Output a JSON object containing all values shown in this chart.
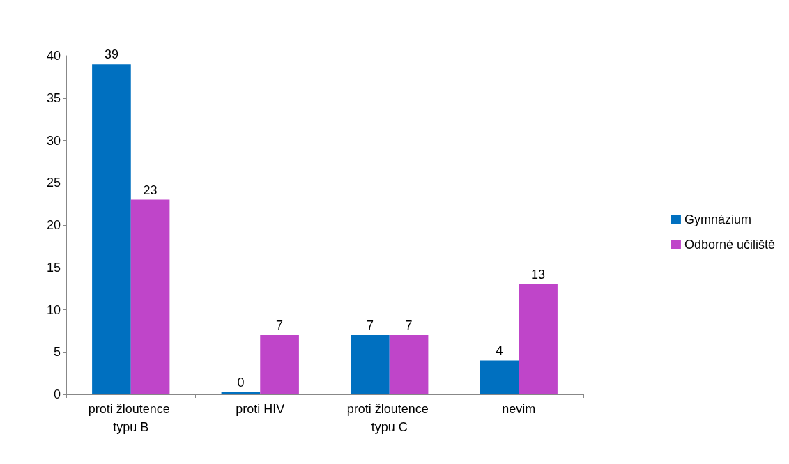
{
  "chart_data": {
    "type": "bar",
    "categories": [
      "proti žloutence typu B",
      "proti HIV",
      "proti žloutence typu C",
      "nevim"
    ],
    "series": [
      {
        "name": "Gymnázium",
        "color": "#0070c0",
        "values": [
          39,
          0,
          7,
          4
        ]
      },
      {
        "name": "Odborné učiliště",
        "color": "#bf45c9",
        "values": [
          23,
          7,
          7,
          13
        ]
      }
    ],
    "ylim": [
      0,
      40
    ],
    "yticks": [
      0,
      5,
      10,
      15,
      20,
      25,
      30,
      35,
      40
    ],
    "grid": false,
    "legend": "right",
    "data_labels": true
  }
}
